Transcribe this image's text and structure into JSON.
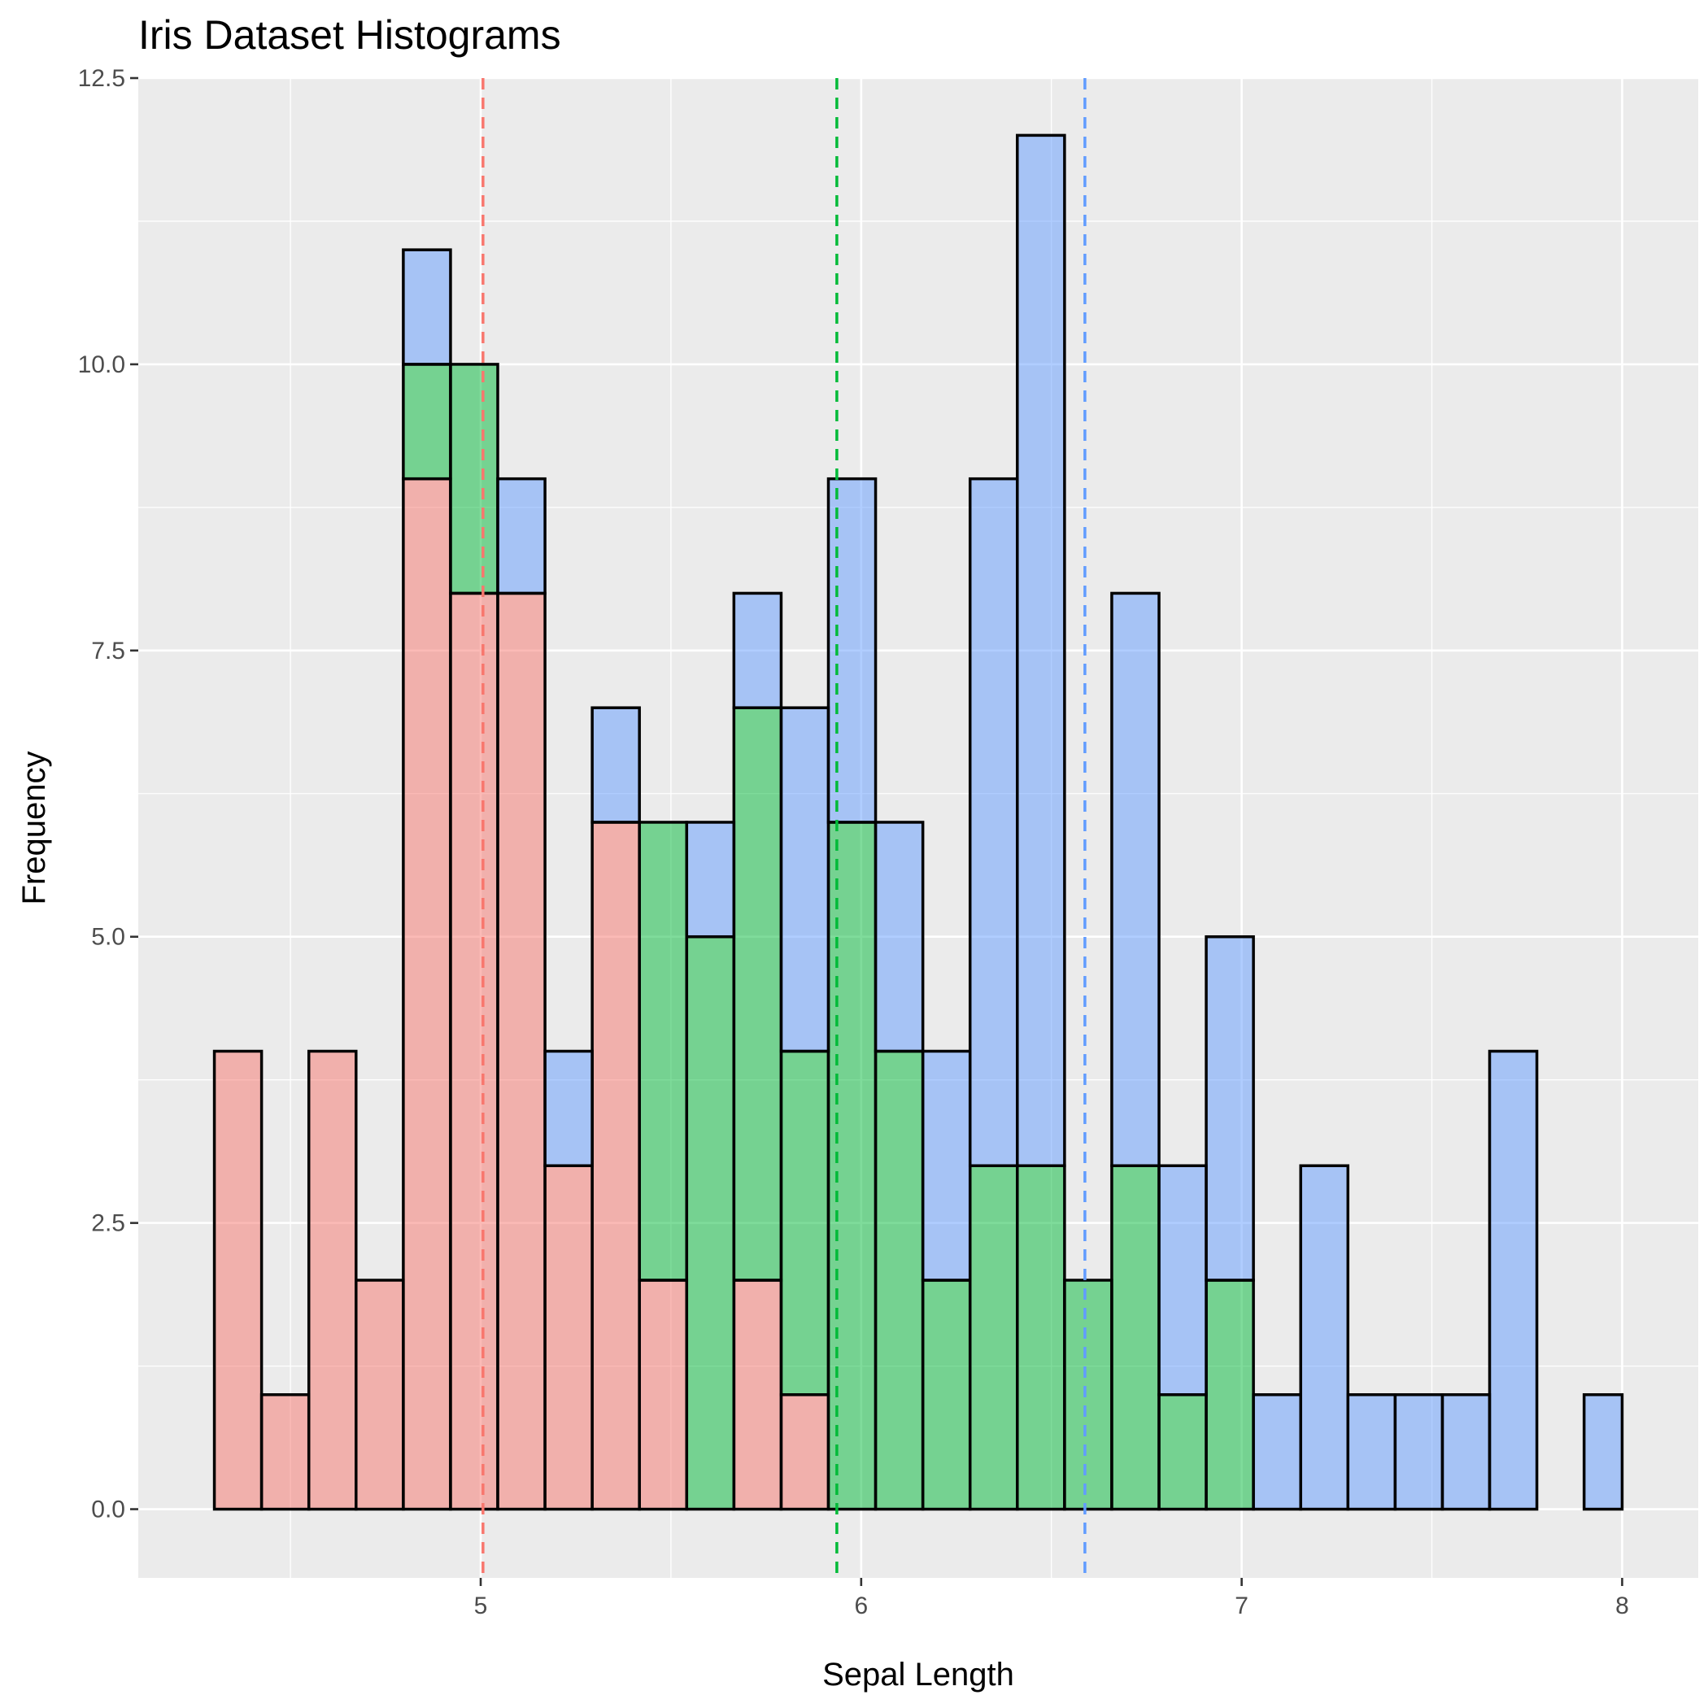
{
  "chart_data": {
    "type": "bar",
    "stacked": true,
    "title": "Iris Dataset Histograms",
    "xlabel": "Sepal Length",
    "ylabel": "Frequency",
    "xlim": [
      4.1,
      8.2
    ],
    "ylim": [
      -0.6,
      12.5
    ],
    "x_ticks": [
      5,
      6,
      7,
      8
    ],
    "y_ticks": [
      0.0,
      2.5,
      5.0,
      7.5,
      10.0,
      12.5
    ],
    "x_tick_labels": [
      "5",
      "6",
      "7",
      "8"
    ],
    "y_tick_labels": [
      "0.0",
      "2.5",
      "5.0",
      "7.5",
      "10.0",
      "12.5"
    ],
    "bin_edges": [
      4.3,
      4.4241,
      4.5483,
      4.6724,
      4.7966,
      4.9207,
      5.0448,
      5.169,
      5.2931,
      5.4172,
      5.5414,
      5.6655,
      5.7897,
      5.9138,
      6.0379,
      6.1621,
      6.2862,
      6.4103,
      6.5345,
      6.6586,
      6.7828,
      6.9069,
      7.031,
      7.1552,
      7.2793,
      7.4034,
      7.5276,
      7.6517,
      7.7759,
      7.9,
      8.0
    ],
    "series": [
      {
        "color": "#F8766D",
        "values": [
          4,
          1,
          4,
          2,
          9,
          8,
          8,
          3,
          6,
          2,
          0,
          2,
          1,
          0,
          0,
          0,
          0,
          0,
          0,
          0,
          0,
          0,
          0,
          0,
          0,
          0,
          0,
          0,
          0,
          0
        ]
      },
      {
        "color": "#00BA38",
        "values": [
          0,
          0,
          0,
          0,
          1,
          2,
          0,
          0,
          0,
          4,
          5,
          5,
          3,
          6,
          4,
          2,
          3,
          3,
          2,
          3,
          1,
          2,
          0,
          0,
          0,
          0,
          0,
          0,
          0,
          0
        ]
      },
      {
        "color": "#619CFF",
        "values": [
          0,
          0,
          0,
          0,
          1,
          0,
          1,
          1,
          1,
          0,
          1,
          1,
          3,
          3,
          2,
          2,
          6,
          9,
          0,
          5,
          2,
          3,
          1,
          3,
          1,
          1,
          1,
          4,
          0,
          1
        ]
      }
    ],
    "mean_lines": [
      {
        "color": "#F8766D",
        "x": 5.006
      },
      {
        "color": "#00BA38",
        "x": 5.936
      },
      {
        "color": "#619CFF",
        "x": 6.588
      }
    ],
    "bar_alpha": 0.5,
    "legend": "none",
    "grid": true
  }
}
